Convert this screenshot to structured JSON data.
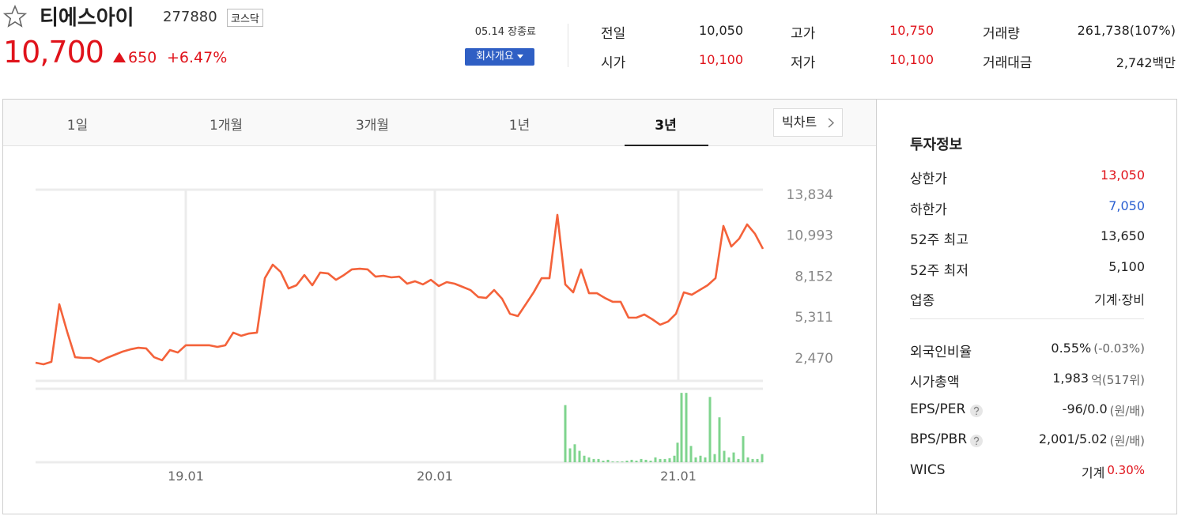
{
  "header": {
    "name": "티에스아이",
    "code": "277880",
    "market": "코스닥",
    "price": "10,700",
    "change": "650",
    "change_pct": "+6.47%",
    "status": "05.14 장종료",
    "company_button": "회사개요"
  },
  "summary": [
    {
      "label": "전일",
      "value": "10,050",
      "color": "#222222"
    },
    {
      "label": "고가",
      "value": "10,750",
      "color": "#e0131b"
    },
    {
      "label": "거래량",
      "value": "261,738(107%)",
      "color": "#222222"
    },
    {
      "label": "시가",
      "value": "10,100",
      "color": "#e0131b"
    },
    {
      "label": "저가",
      "value": "10,100",
      "color": "#e0131b"
    },
    {
      "label": "거래대금",
      "value": "2,742백만",
      "color": "#222222"
    }
  ],
  "tabs": [
    "1일",
    "1개월",
    "3개월",
    "1년",
    "3년"
  ],
  "active_tab": 4,
  "big_chart_button": "빅차트",
  "info": {
    "title": "투자정보",
    "groups": [
      [
        {
          "label": "상한가",
          "value": "13,050",
          "color": "#e0131b"
        },
        {
          "label": "하한가",
          "value": "7,050",
          "color": "#2a5fd1"
        },
        {
          "label": "52주 최고",
          "value": "13,650"
        },
        {
          "label": "52주 최저",
          "value": "5,100"
        },
        {
          "label": "업종",
          "value": "기계·장비"
        }
      ],
      [
        {
          "label": "외국인비율",
          "value": "0.55%",
          "note": "(-0.03%)"
        },
        {
          "label": "시가총액",
          "value": "1,983",
          "note": "억(517위)"
        },
        {
          "label": "EPS/PER",
          "value": "-96/0.0",
          "note": "(원/배)",
          "help": true
        },
        {
          "label": "BPS/PBR",
          "value": "2,001/5.02",
          "note": "(원/배)",
          "help": true
        },
        {
          "label": "WICS",
          "value": "기계",
          "note": "0.30%",
          "note_color": "#e0131b"
        }
      ]
    ]
  },
  "chart_data": [
    {
      "type": "line",
      "color": "#f4623a",
      "grid": true,
      "values": [
        2140,
        2030,
        2200,
        6200,
        4280,
        2520,
        2470,
        2470,
        2200,
        2470,
        2690,
        2910,
        3070,
        3180,
        3130,
        2520,
        2310,
        3020,
        2850,
        3350,
        3350,
        3350,
        3350,
        3240,
        3350,
        4230,
        4010,
        4170,
        4230,
        8010,
        8950,
        8450,
        7300,
        7520,
        8230,
        7520,
        8400,
        8340,
        7900,
        8230,
        8620,
        8670,
        8620,
        8120,
        8180,
        8070,
        8120,
        7630,
        7800,
        7580,
        7900,
        7470,
        7740,
        7630,
        7410,
        7190,
        6700,
        6640,
        7190,
        6590,
        5540,
        5380,
        6200,
        7030,
        8010,
        8010,
        12410,
        7580,
        7030,
        8620,
        6970,
        6970,
        6640,
        6370,
        6370,
        5270,
        5270,
        5490,
        5160,
        4780,
        5000,
        5540,
        7030,
        6860,
        7190,
        7520,
        8010,
        11640,
        10210,
        10760,
        11750,
        11090,
        10050
      ],
      "xlim": [
        0,
        92
      ],
      "xticks": [
        {
          "value": 19,
          "label": "19.01"
        },
        {
          "value": 50.5,
          "label": "20.01"
        },
        {
          "value": 81.3,
          "label": "21.01"
        }
      ],
      "ylim": [
        878,
        14163
      ],
      "yticks": [
        {
          "value": 13834,
          "label": "13,834"
        },
        {
          "value": 10993,
          "label": "10,993"
        },
        {
          "value": 8152,
          "label": "8,152"
        },
        {
          "value": 5311,
          "label": "5,311"
        },
        {
          "value": 2470,
          "label": "2,470"
        }
      ]
    },
    {
      "type": "bar",
      "color": "#7fd48e",
      "x": [
        67,
        67.6,
        68.2,
        68.8,
        69.4,
        70,
        70.6,
        71.2,
        71.8,
        72.4,
        73,
        73.6,
        74.2,
        74.8,
        75.4,
        76,
        76.6,
        77.2,
        77.8,
        78.4,
        79,
        79.6,
        80.2,
        80.8,
        81.2,
        81.7,
        82.3,
        82.9,
        83.5,
        84.1,
        84.7,
        85.3,
        85.9,
        86.5,
        87.1,
        87.7,
        88.3,
        88.9,
        89.5,
        90.1,
        90.7,
        91.3,
        91.9
      ],
      "values": [
        70,
        17,
        22,
        14,
        8,
        6,
        4,
        4,
        2,
        3,
        1,
        1,
        1,
        2,
        3,
        2,
        4,
        3,
        2,
        6,
        4,
        4,
        5,
        8,
        24,
        85,
        85,
        20,
        6,
        8,
        6,
        80,
        10,
        55,
        14,
        6,
        12,
        4,
        32,
        6,
        4,
        4,
        10
      ],
      "xlim": [
        0,
        92
      ],
      "ylim": [
        0,
        90
      ]
    }
  ]
}
